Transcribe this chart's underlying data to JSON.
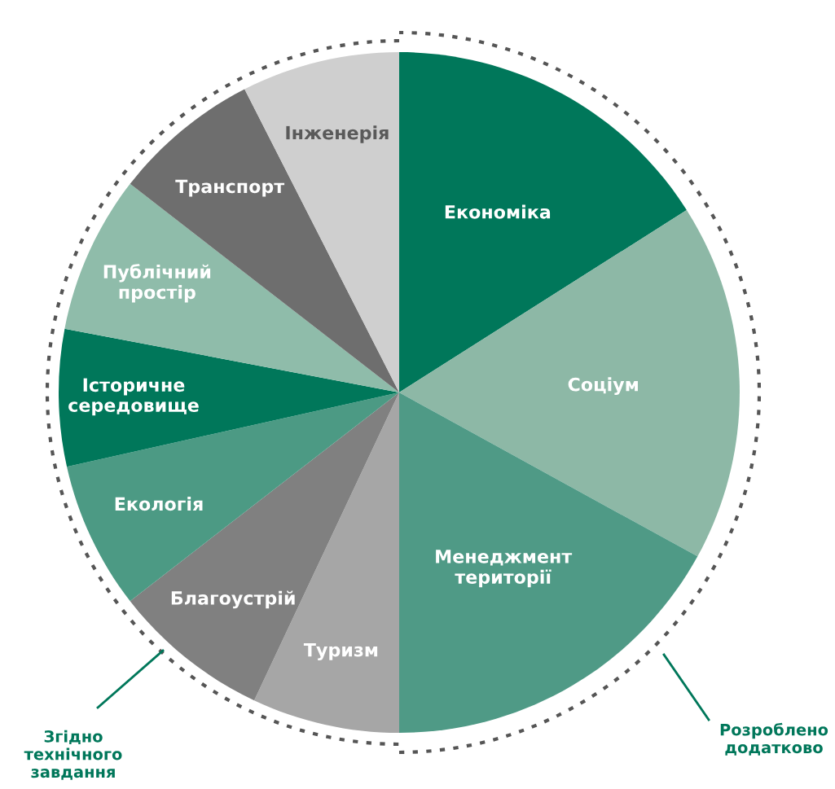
{
  "chart_data": {
    "type": "pie",
    "categories": [
      "Економіка",
      "Соціум",
      "Менеджмент\nтериторії",
      "Туризм",
      "Благоустрій",
      "Екологія",
      "Історичне\nсередовище",
      "Публічний\nпростір",
      "Транспорт",
      "Інженерія"
    ],
    "values": [
      16,
      17,
      17,
      7,
      7.5,
      7,
      6.5,
      7.5,
      7,
      7.5
    ],
    "colors": [
      "#00775a",
      "#8db8a6",
      "#4f9a86",
      "#a6a6a6",
      "#808080",
      "#4c9a84",
      "#00775a",
      "#8fbcaa",
      "#6e6e6e",
      "#cfcfcf"
    ],
    "annotations": [
      "Згідно\nтехнічного\nзавдання",
      "Розроблено\nдодатково"
    ]
  }
}
